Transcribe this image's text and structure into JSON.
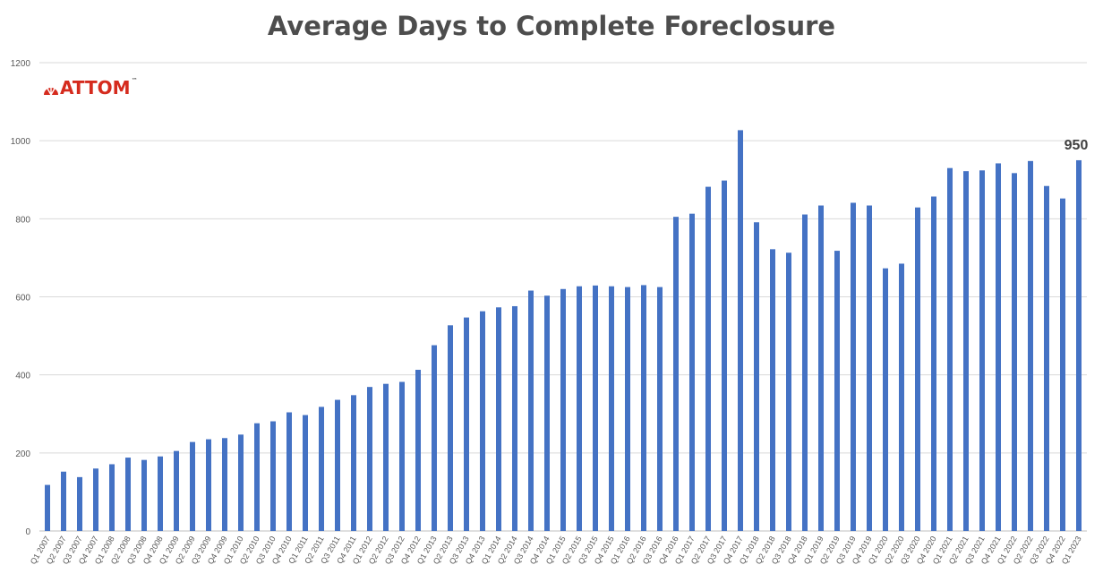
{
  "brand": {
    "name": "ATTOM",
    "tm": "™"
  },
  "chart_data": {
    "type": "bar",
    "title": "Average Days to Complete Foreclosure",
    "xlabel": "",
    "ylabel": "",
    "ylim": [
      0,
      1200
    ],
    "yticks": [
      "0",
      "200",
      "400",
      "600",
      "800",
      "1000",
      "1200"
    ],
    "grid": true,
    "legend": "none",
    "bar_color": "#4472c4",
    "categories": [
      "Q1 2007",
      "Q2 2007",
      "Q3 2007",
      "Q4 2007",
      "Q1 2008",
      "Q2 2008",
      "Q3 2008",
      "Q4 2008",
      "Q1 2009",
      "Q2 2009",
      "Q3 2009",
      "Q4 2009",
      "Q1 2010",
      "Q2 2010",
      "Q3 2010",
      "Q4 2010",
      "Q1 2011",
      "Q2 2011",
      "Q3 2011",
      "Q4 2011",
      "Q1 2012",
      "Q2 2012",
      "Q3 2012",
      "Q4 2012",
      "Q1 2013",
      "Q2 2013",
      "Q3 2013",
      "Q4 2013",
      "Q1 2014",
      "Q2 2014",
      "Q3 2014",
      "Q4 2014",
      "Q1 2015",
      "Q2 2015",
      "Q3 2015",
      "Q4 2015",
      "Q1 2016",
      "Q2 2016",
      "Q3 2016",
      "Q4 2016",
      "Q1 2017",
      "Q2 2017",
      "Q3 2017",
      "Q4 2017",
      "Q1 2018",
      "Q2 2018",
      "Q3 2018",
      "Q4 2018",
      "Q1 2019",
      "Q2 2019",
      "Q3 2019",
      "Q4 2019",
      "Q1 2020",
      "Q2 2020",
      "Q3 2020",
      "Q4 2020",
      "Q1 2021",
      "Q2 2021",
      "Q3 2021",
      "Q4 2021",
      "Q1 2022",
      "Q2 2022",
      "Q3 2022",
      "Q4 2022",
      "Q1 2023"
    ],
    "values": [
      118,
      152,
      138,
      160,
      171,
      188,
      182,
      191,
      205,
      228,
      235,
      238,
      247,
      276,
      281,
      304,
      297,
      318,
      336,
      348,
      369,
      377,
      382,
      413,
      476,
      527,
      547,
      563,
      573,
      576,
      616,
      603,
      620,
      627,
      629,
      627,
      625,
      630,
      625,
      805,
      813,
      882,
      898,
      1027,
      791,
      722,
      713,
      811,
      834,
      718,
      841,
      834,
      673,
      685,
      829,
      857,
      930,
      922,
      924,
      942,
      917,
      948,
      884,
      852,
      950
    ],
    "annotations": [
      {
        "category": "Q1 2023",
        "text": "950"
      }
    ]
  }
}
